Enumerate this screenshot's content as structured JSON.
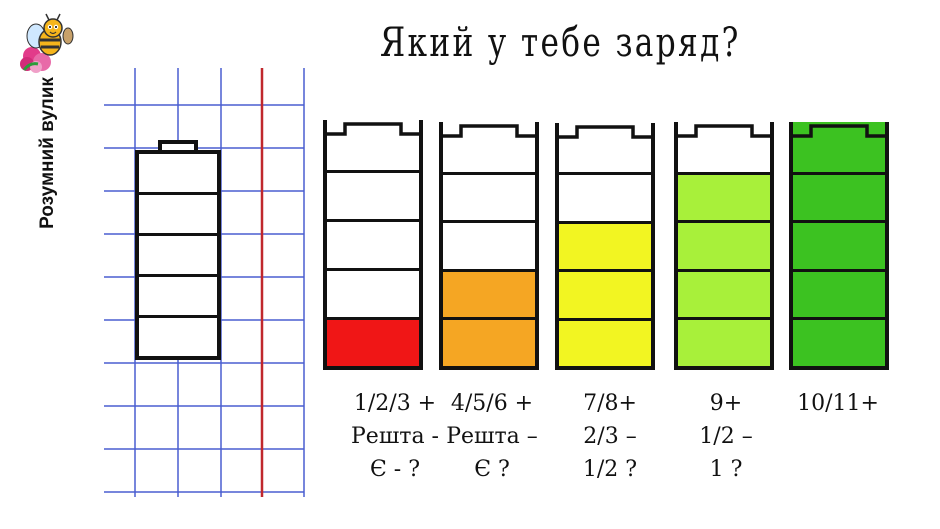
{
  "brand": {
    "name": "Розумний вулик",
    "logo_icon": "bee-on-flower-icon"
  },
  "title": "Який у тебе заряд?",
  "colors": {
    "grid": "#4a5fd0",
    "margin_line": "#c0282d",
    "outline": "#111111"
  },
  "template_battery": {
    "segments": 5,
    "filled": 0
  },
  "batteries": [
    {
      "segments": 5,
      "filled": 1,
      "color": "#f01616",
      "label_lines": [
        "1/2/3 +",
        "Решта -",
        "Є - ?"
      ]
    },
    {
      "segments": 5,
      "filled": 2,
      "color": "#f5a623",
      "label_lines": [
        "4/5/6 +",
        "Решта –",
        "Є ?"
      ]
    },
    {
      "segments": 5,
      "filled": 3,
      "color": "#f2f522",
      "label_lines": [
        "7/8+",
        "2/3 –",
        "1/2 ?"
      ]
    },
    {
      "segments": 5,
      "filled": 4,
      "color": "#a8f03a",
      "label_lines": [
        "9+",
        "1/2 –",
        "1 ?"
      ]
    },
    {
      "segments": 5,
      "filled": 5,
      "color": "#3cc221",
      "label_lines": [
        "10/11+"
      ]
    }
  ]
}
